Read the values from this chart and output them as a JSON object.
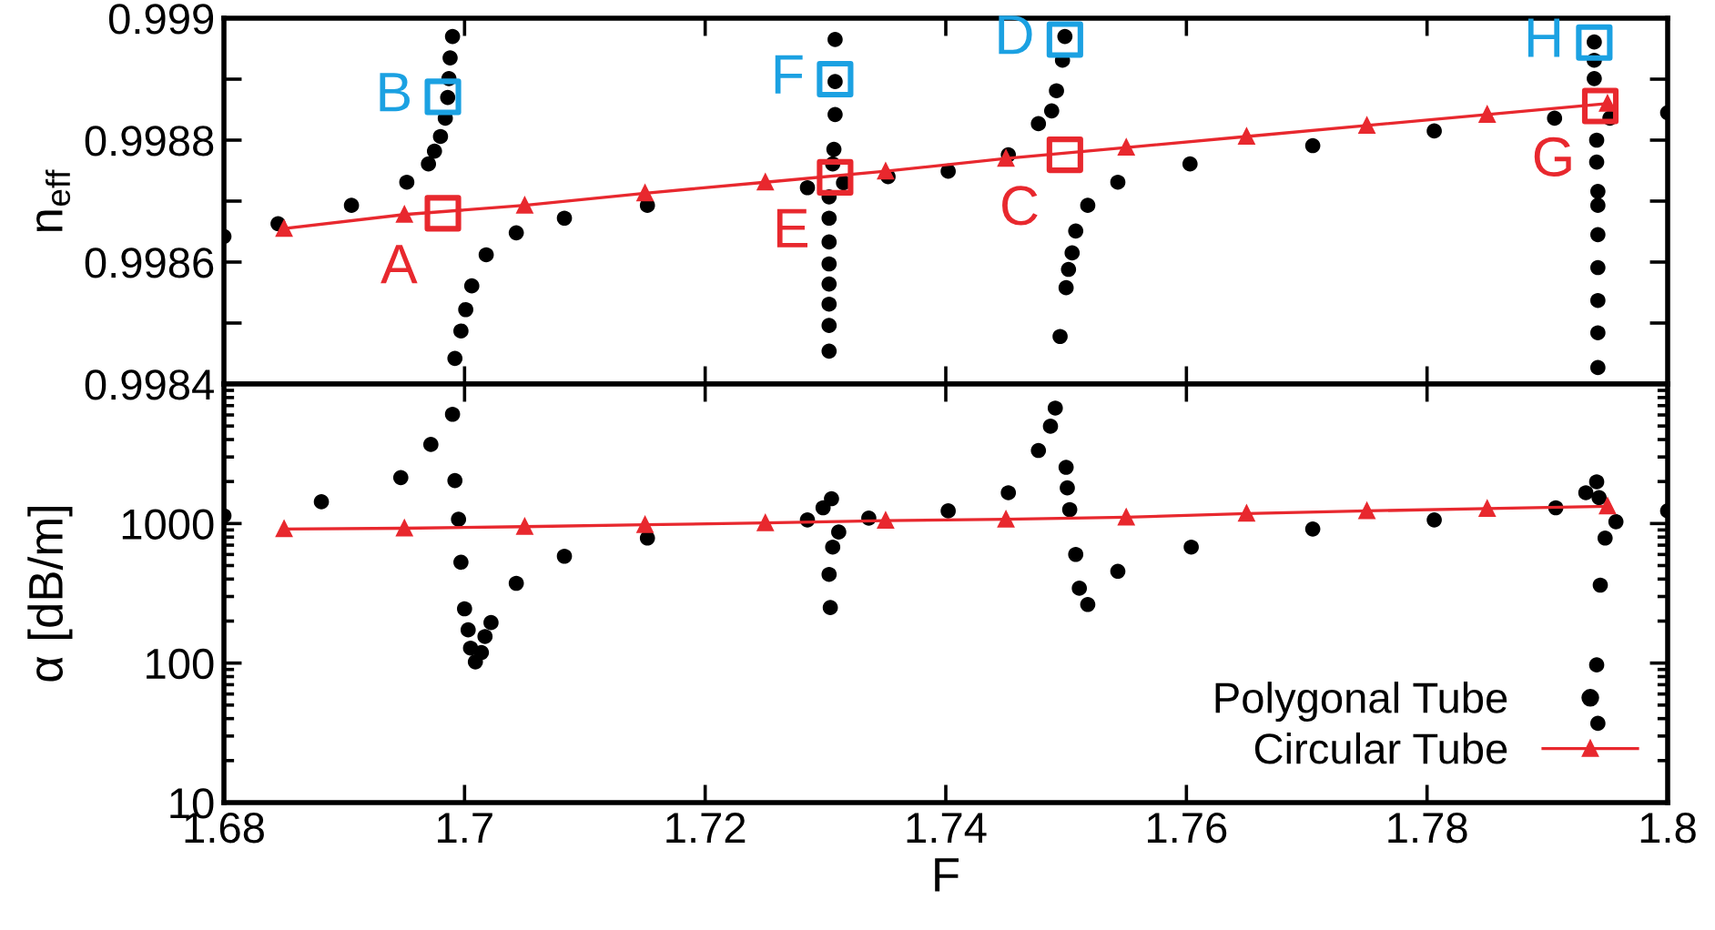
{
  "chart_data": [
    {
      "type": "scatter",
      "ylabel": "n$_{eff}$",
      "tick_labels": "y",
      "grid": false,
      "legend": false,
      "xlim": [
        1.68,
        1.8
      ],
      "xticks": [
        1.68,
        1.7,
        1.72,
        1.74,
        1.76,
        1.78,
        1.8
      ],
      "ylim": [
        0.9984,
        0.999
      ],
      "yticks": [
        0.9984,
        {
          "value": 0.9985,
          "label": null
        },
        0.9986,
        {
          "value": 0.9987,
          "label": null
        },
        0.9988,
        {
          "value": 0.9989,
          "label": null
        },
        0.999
      ],
      "series": [
        {
          "marker": "circle",
          "color": "#000000",
          "x": [
            1.68,
            1.6845,
            1.6906,
            1.6952,
            1.697,
            1.6975,
            1.698,
            1.6984,
            1.6986,
            1.6987,
            1.6988,
            1.699,
            1.6992,
            1.6997,
            1.7001,
            1.7006,
            1.7018,
            1.7043,
            1.7083,
            1.7152,
            1.7285,
            1.7303,
            1.7303,
            1.7303,
            1.7303,
            1.7303,
            1.7303,
            1.7303,
            1.7303,
            1.7306,
            1.7307,
            1.7308,
            1.7308,
            1.7308,
            1.7315,
            1.7352,
            1.7402,
            1.7452,
            1.7477,
            1.7488,
            1.7492,
            1.7497,
            1.7499,
            1.7495,
            1.75,
            1.7502,
            1.7505,
            1.7508,
            1.7518,
            1.7543,
            1.7603,
            1.7705,
            1.7806,
            1.7906,
            1.7939,
            1.7939,
            1.7939,
            1.7941,
            1.7941,
            1.7942,
            1.7942,
            1.7942,
            1.7942,
            1.7942,
            1.7942,
            1.7942,
            1.7952,
            1.8
          ],
          "values": [
            0.998642,
            0.998663,
            0.998693,
            0.998731,
            0.998761,
            0.998782,
            0.998806,
            0.998836,
            0.99887,
            0.998901,
            0.998935,
            0.99897,
            0.998442,
            0.998487,
            0.998522,
            0.998561,
            0.998612,
            0.998648,
            0.998672,
            0.998693,
            0.998722,
            0.998454,
            0.998496,
            0.998531,
            0.998564,
            0.998597,
            0.998633,
            0.998672,
            0.998707,
            0.998761,
            0.998785,
            0.998842,
            0.998896,
            0.998965,
            0.99873,
            0.99874,
            0.998749,
            0.998776,
            0.998827,
            0.998848,
            0.998881,
            0.998931,
            0.99897,
            0.998478,
            0.998558,
            0.998588,
            0.998615,
            0.998651,
            0.998693,
            0.998731,
            0.998761,
            0.998791,
            0.998815,
            0.998836,
            0.998961,
            0.998931,
            0.998901,
            0.9988,
            0.998764,
            0.998716,
            0.998693,
            0.998645,
            0.998591,
            0.998537,
            0.998484,
            0.998427,
            0.998836,
            0.998845
          ]
        },
        {
          "type": "line",
          "marker": "triangle",
          "color": "#e8282e",
          "x": [
            1.685,
            1.695,
            1.705,
            1.715,
            1.725,
            1.735,
            1.745,
            1.755,
            1.765,
            1.775,
            1.785,
            1.795
          ],
          "values": [
            0.998655,
            0.998678,
            0.998693,
            0.998713,
            0.998731,
            0.998749,
            0.99877,
            0.998788,
            0.998806,
            0.998824,
            0.998842,
            0.99886
          ]
        },
        {
          "type": "scatter",
          "marker": "square",
          "color": "#e8282e",
          "x": [
            1.6982,
            1.7308,
            1.7499,
            1.7944
          ],
          "values": [
            0.99868,
            0.998739,
            0.998776,
            0.998856
          ]
        },
        {
          "type": "scatter",
          "marker": "square",
          "color": "#1ba1e2",
          "x": [
            1.6982,
            1.7308,
            1.7499,
            1.7939
          ],
          "values": [
            0.998871,
            0.9989,
            0.998965,
            0.99896
          ]
        }
      ],
      "annotations": [
        {
          "text": "A",
          "x": 1.6982,
          "y": 0.99868
        },
        {
          "text": "B",
          "x": 1.6982,
          "y": 0.998871
        },
        {
          "text": "C",
          "x": 1.7499,
          "y": 0.998776
        },
        {
          "text": "D",
          "x": 1.7499,
          "y": 0.998965
        },
        {
          "text": "E",
          "x": 1.7308,
          "y": 0.998739
        },
        {
          "text": "F",
          "x": 1.7308,
          "y": 0.9989
        },
        {
          "text": "G",
          "x": 1.7944,
          "y": 0.998856
        },
        {
          "text": "H",
          "x": 1.7939,
          "y": 0.99896
        }
      ]
    },
    {
      "type": "scatter",
      "xlabel": "F",
      "ylabel": "α [dB/m]",
      "log": "y",
      "grid": false,
      "legend": "bottom right",
      "xlim": [
        1.68,
        1.8
      ],
      "xticks": [
        1.68,
        1.7,
        1.72,
        1.74,
        1.76,
        1.78,
        1.8
      ],
      "ylim": [
        10,
        10000
      ],
      "yticks": [
        10,
        100,
        1000,
        {
          "value": 10000,
          "label": null
        }
      ],
      "series": [
        {
          "name": "Polygonal Tube",
          "marker": "circle",
          "color": "#000000",
          "x": [
            1.68,
            1.6881,
            1.6947,
            1.6972,
            1.699,
            1.6992,
            1.6995,
            1.6997,
            1.7,
            1.7003,
            1.7005,
            1.7009,
            1.7014,
            1.7017,
            1.7022,
            1.7043,
            1.7083,
            1.7152,
            1.7285,
            1.7298,
            1.7305,
            1.7306,
            1.7303,
            1.7304,
            1.7311,
            1.7336,
            1.7402,
            1.7452,
            1.7477,
            1.7487,
            1.7491,
            1.75,
            1.7501,
            1.7503,
            1.7508,
            1.7511,
            1.7518,
            1.7543,
            1.7604,
            1.7705,
            1.7806,
            1.7907,
            1.7932,
            1.7941,
            1.7943,
            1.7944,
            1.7941,
            1.7942,
            1.7948,
            1.7957,
            1.8
          ],
          "values": [
            1138,
            1432,
            2135,
            3690,
            6070,
            2033,
            1072,
            528,
            245,
            173,
            128,
            102,
            119,
            155,
            195,
            373,
            583,
            787,
            1062,
            1297,
            1507,
            678,
            432,
            250,
            869,
            1094,
            1233,
            1663,
            3340,
            4980,
            6720,
            2530,
            1800,
            1259,
            601,
            344,
            263,
            455,
            678,
            914,
            1062,
            1297,
            1663,
            1991,
            1535,
            362,
            97,
            37,
            787,
            1031,
            1233
          ]
        },
        {
          "name": "Circular Tube",
          "type": "line",
          "marker": "triangle",
          "color": "#e8282e",
          "x": [
            1.685,
            1.695,
            1.705,
            1.715,
            1.725,
            1.735,
            1.745,
            1.755,
            1.765,
            1.775,
            1.785,
            1.795
          ],
          "values": [
            914,
            925,
            950,
            980,
            1010,
            1050,
            1072,
            1110,
            1180,
            1233,
            1280,
            1330
          ]
        }
      ]
    }
  ]
}
